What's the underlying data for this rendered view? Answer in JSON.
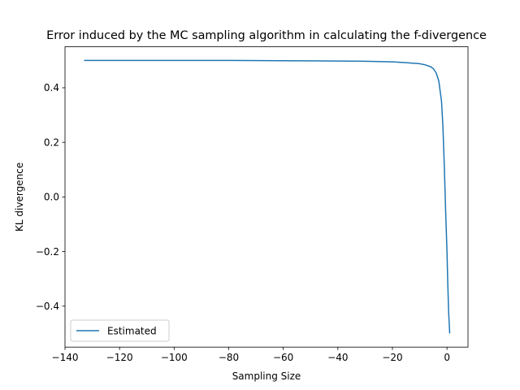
{
  "chart_data": {
    "type": "line",
    "title": "Error induced by the MC sampling algorithm in calculating the f-divergence",
    "xlabel": "Sampling Size",
    "ylabel": "KL divergence",
    "xlim": [
      -140,
      7.7
    ],
    "ylim": [
      -0.55,
      0.55
    ],
    "xticks": [
      -140,
      -120,
      -100,
      -80,
      -60,
      -40,
      -20,
      0
    ],
    "xtick_labels": [
      "−140",
      "−120",
      "−100",
      "−80",
      "−60",
      "−40",
      "−20",
      "0"
    ],
    "yticks": [
      -0.4,
      -0.2,
      0.0,
      0.2,
      0.4
    ],
    "ytick_labels": [
      "−0.4",
      "−0.2",
      "0.0",
      "0.2",
      "0.4"
    ],
    "grid": false,
    "legend_position": "lower-left",
    "series": [
      {
        "name": "Estimated",
        "color": "#1f77b4",
        "x": [
          -133,
          -120,
          -100,
          -80,
          -60,
          -40,
          -30,
          -20,
          -15,
          -10,
          -8,
          -6,
          -5,
          -4,
          -3,
          -2,
          -1.5,
          -1,
          -0.5,
          0,
          0.3,
          0.6,
          1
        ],
        "y": [
          0.5,
          0.5,
          0.5,
          0.5,
          0.499,
          0.498,
          0.497,
          0.495,
          0.492,
          0.488,
          0.484,
          0.477,
          0.47,
          0.455,
          0.425,
          0.35,
          0.26,
          0.12,
          -0.05,
          -0.2,
          -0.32,
          -0.42,
          -0.5
        ]
      }
    ]
  }
}
